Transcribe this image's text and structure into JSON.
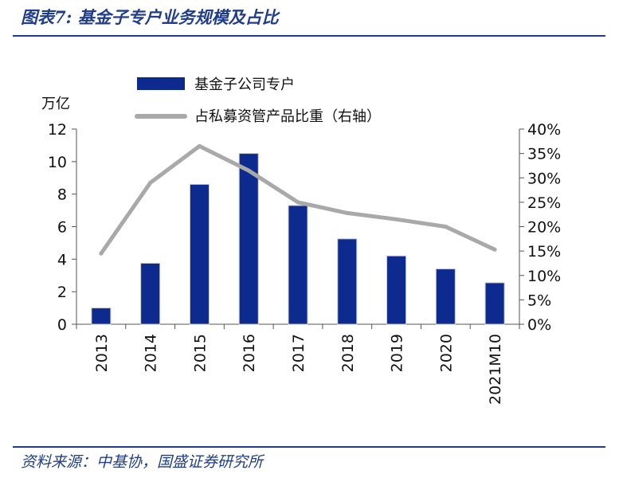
{
  "header": {
    "title": "图表7: 基金子专户业务规模及占比"
  },
  "footer": {
    "source": "资料来源：中基协，国盛证券研究所"
  },
  "colors": {
    "bar": "#0d2a8f",
    "line": "#a9a9a9",
    "accent": "#1f3d8a"
  },
  "chart_data": {
    "type": "bar",
    "categories": [
      "2013",
      "2014",
      "2015",
      "2016",
      "2017",
      "2018",
      "2019",
      "2020",
      "2021M10"
    ],
    "left_axis": {
      "label": "万亿",
      "ylim": [
        0,
        12
      ],
      "ticks": [
        "0",
        "2",
        "4",
        "6",
        "8",
        "10",
        "12"
      ]
    },
    "right_axis": {
      "ylim": [
        0,
        0.4
      ],
      "ticks": [
        "0%",
        "5%",
        "10%",
        "15%",
        "20%",
        "25%",
        "30%",
        "35%",
        "40%"
      ]
    },
    "series": [
      {
        "name": "基金子公司专户",
        "type": "bar",
        "axis": "left",
        "values": [
          1.0,
          3.75,
          8.6,
          10.5,
          7.3,
          5.25,
          4.2,
          3.4,
          2.55
        ]
      },
      {
        "name": "占私募资管产品比重（右轴）",
        "type": "line",
        "axis": "right",
        "values": [
          0.145,
          0.29,
          0.365,
          0.315,
          0.25,
          0.228,
          0.215,
          0.2,
          0.153
        ]
      }
    ],
    "legend": "top-left",
    "grid": false
  }
}
